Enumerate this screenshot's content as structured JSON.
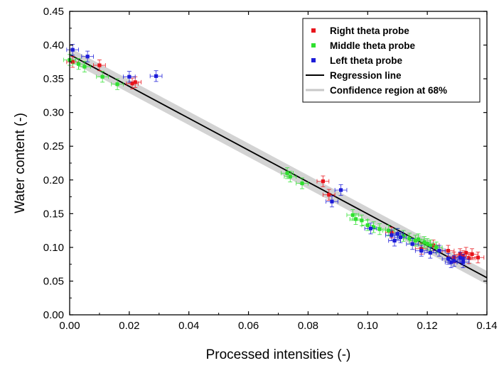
{
  "chart_data": {
    "type": "scatter",
    "xlabel": "Processed intensities (-)",
    "ylabel": "Water content (-)",
    "xlim": [
      0,
      0.14
    ],
    "ylim": [
      0,
      0.45
    ],
    "xticks": [
      "0.00",
      "0.02",
      "0.04",
      "0.06",
      "0.08",
      "0.10",
      "0.12",
      "0.14"
    ],
    "yticks": [
      "0.00",
      "0.05",
      "0.10",
      "0.15",
      "0.20",
      "0.25",
      "0.30",
      "0.35",
      "0.40",
      "0.45"
    ],
    "legend_position": "top-right",
    "series": [
      {
        "name": "Right theta probe",
        "color": "#e8141b",
        "marker": "square",
        "x_error": 0.002,
        "y_error": 0.008,
        "points": [
          [
            0.001,
            0.375
          ],
          [
            0.01,
            0.37
          ],
          [
            0.021,
            0.343
          ],
          [
            0.022,
            0.345
          ],
          [
            0.085,
            0.198
          ],
          [
            0.087,
            0.178
          ],
          [
            0.108,
            0.122
          ],
          [
            0.118,
            0.098
          ],
          [
            0.122,
            0.103
          ],
          [
            0.127,
            0.095
          ],
          [
            0.129,
            0.085
          ],
          [
            0.131,
            0.09
          ],
          [
            0.132,
            0.087
          ],
          [
            0.133,
            0.092
          ],
          [
            0.134,
            0.084
          ],
          [
            0.135,
            0.09
          ],
          [
            0.137,
            0.085
          ]
        ]
      },
      {
        "name": "Middle theta probe",
        "color": "#2fe02f",
        "marker": "square",
        "x_error": 0.002,
        "y_error": 0.008,
        "points": [
          [
            0.0,
            0.378
          ],
          [
            0.003,
            0.372
          ],
          [
            0.005,
            0.368
          ],
          [
            0.011,
            0.353
          ],
          [
            0.016,
            0.342
          ],
          [
            0.073,
            0.21
          ],
          [
            0.074,
            0.205
          ],
          [
            0.078,
            0.195
          ],
          [
            0.095,
            0.148
          ],
          [
            0.096,
            0.142
          ],
          [
            0.098,
            0.14
          ],
          [
            0.1,
            0.133
          ],
          [
            0.102,
            0.13
          ],
          [
            0.104,
            0.127
          ],
          [
            0.107,
            0.125
          ],
          [
            0.11,
            0.12
          ],
          [
            0.112,
            0.117
          ],
          [
            0.114,
            0.113
          ],
          [
            0.116,
            0.11
          ],
          [
            0.117,
            0.112
          ],
          [
            0.119,
            0.108
          ],
          [
            0.12,
            0.105
          ],
          [
            0.121,
            0.103
          ],
          [
            0.123,
            0.1
          ]
        ]
      },
      {
        "name": "Left theta probe",
        "color": "#1c1cd8",
        "marker": "square",
        "x_error": 0.002,
        "y_error": 0.008,
        "points": [
          [
            0.001,
            0.393
          ],
          [
            0.006,
            0.383
          ],
          [
            0.02,
            0.353
          ],
          [
            0.029,
            0.354
          ],
          [
            0.088,
            0.168
          ],
          [
            0.091,
            0.185
          ],
          [
            0.101,
            0.128
          ],
          [
            0.108,
            0.118
          ],
          [
            0.109,
            0.11
          ],
          [
            0.11,
            0.12
          ],
          [
            0.111,
            0.115
          ],
          [
            0.115,
            0.105
          ],
          [
            0.118,
            0.095
          ],
          [
            0.121,
            0.092
          ],
          [
            0.124,
            0.095
          ],
          [
            0.127,
            0.083
          ],
          [
            0.128,
            0.078
          ],
          [
            0.129,
            0.08
          ],
          [
            0.131,
            0.085
          ],
          [
            0.132,
            0.082
          ],
          [
            0.132,
            0.078
          ]
        ]
      },
      {
        "name": "Regression line",
        "color": "#000000",
        "type": "line",
        "x": [
          0,
          0.14
        ],
        "y": [
          0.386,
          0.055
        ]
      },
      {
        "name": "Confidence region at 68%",
        "color": "#c8c8c8",
        "type": "area",
        "x": [
          0,
          0.14
        ],
        "lower": [
          0.376,
          0.045
        ],
        "upper": [
          0.396,
          0.065
        ]
      }
    ]
  }
}
